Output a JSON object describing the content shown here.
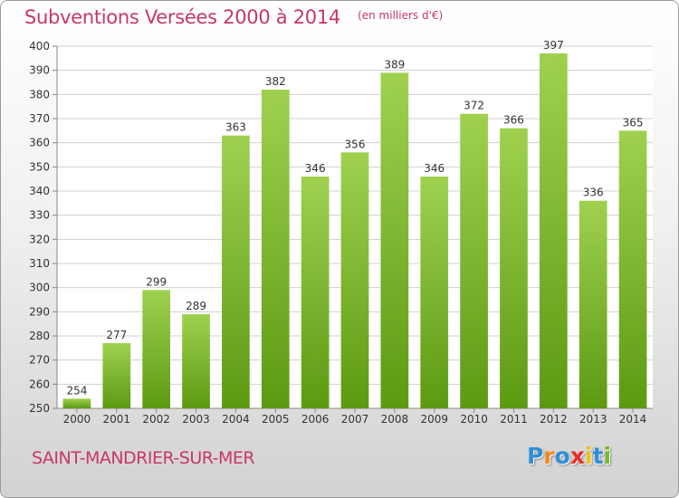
{
  "title": "Subventions Versées 2000 à 2014",
  "unit_note": "(en milliers d'€)",
  "location": "SAINT-MANDRIER-SUR-MER",
  "brand": {
    "text": "Proxiti",
    "letters": [
      {
        "char": "P",
        "color": "#2e8fd6"
      },
      {
        "char": "r",
        "color": "#f08a1c"
      },
      {
        "char": "o",
        "color": "#2e8fd6"
      },
      {
        "char": "x",
        "color": "#e8302a"
      },
      {
        "char": "i",
        "color": "#f0c01c"
      },
      {
        "char": "t",
        "color": "#2e8fd6"
      },
      {
        "char": "i",
        "color": "#7ab829"
      }
    ]
  },
  "colors": {
    "bar_light": "#9fd14f",
    "bar_dark": "#5c9a12",
    "title": "#c8366b",
    "grid": "#d0d0d0"
  },
  "chart_data": {
    "type": "bar",
    "categories": [
      "2000",
      "2001",
      "2002",
      "2003",
      "2004",
      "2005",
      "2006",
      "2007",
      "2008",
      "2009",
      "2010",
      "2011",
      "2012",
      "2013",
      "2014"
    ],
    "values": [
      254,
      277,
      299,
      289,
      363,
      382,
      346,
      356,
      389,
      346,
      372,
      366,
      397,
      336,
      365
    ],
    "ylim": [
      250,
      400
    ],
    "yticks": [
      250,
      260,
      270,
      280,
      290,
      300,
      310,
      320,
      330,
      340,
      350,
      360,
      370,
      380,
      390,
      400
    ],
    "grid": true,
    "xlabel": "",
    "ylabel": ""
  }
}
